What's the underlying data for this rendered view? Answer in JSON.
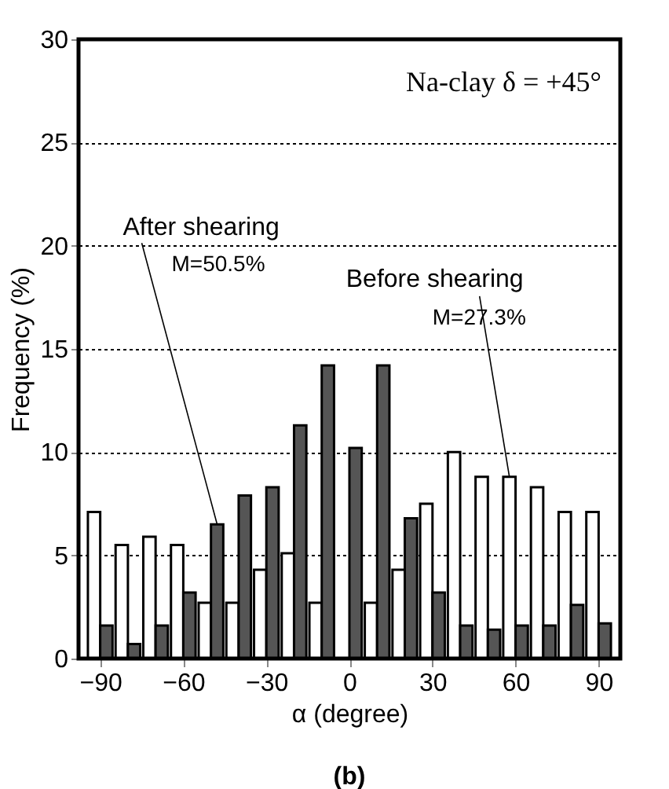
{
  "chart_data": {
    "type": "bar",
    "xlabel": "α (degree)",
    "ylabel": "Frequency (%)",
    "x": [
      -90,
      -80,
      -70,
      -60,
      -50,
      -40,
      -30,
      -20,
      -10,
      0,
      10,
      20,
      30,
      40,
      50,
      60,
      70,
      80,
      90
    ],
    "series": [
      {
        "color": "#ffffff",
        "values": [
          7.1,
          5.5,
          5.9,
          5.5,
          2.7,
          2.7,
          4.3,
          5.1,
          2.7,
          null,
          2.7,
          4.3,
          7.5,
          10.0,
          8.8,
          8.8,
          8.3,
          7.1,
          7.1
        ]
      },
      {
        "color": "#555555",
        "values": [
          1.6,
          0.7,
          1.6,
          3.2,
          6.5,
          7.9,
          8.3,
          11.3,
          14.2,
          10.2,
          14.2,
          6.8,
          3.2,
          1.6,
          1.4,
          1.6,
          1.6,
          2.6,
          1.7
        ]
      }
    ],
    "annotations": [
      {
        "text": "Before shearing",
        "x": 60,
        "y": 8.8
      },
      "M=27.3%",
      {
        "text": "After shearing",
        "x": -50,
        "y": 6.5
      },
      "M=50.5%",
      "Na-clay  δ = +45°",
      "(b)"
    ],
    "xlim": [
      -95,
      95
    ],
    "xticks": [
      -90,
      -60,
      -30,
      0,
      30,
      60,
      90
    ],
    "ylim": [
      0,
      30
    ],
    "yticks": [
      0,
      5,
      10,
      15,
      20,
      25,
      30
    ],
    "grid": "y"
  }
}
